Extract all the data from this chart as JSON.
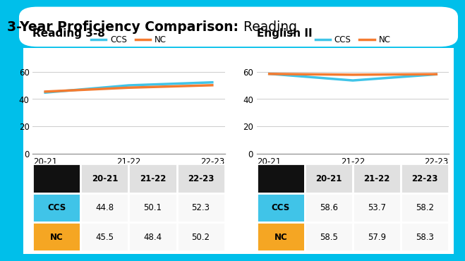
{
  "title_bold": "3-Year Proficiency Comparison:",
  "title_light": " Reading",
  "bg_color": "#00BFEA",
  "chart1_title": "Reading 3-8",
  "chart2_title": "English II",
  "years": [
    "20-21",
    "21-22",
    "22-23"
  ],
  "ccs_color": "#40C4E8",
  "nc_color": "#F47B30",
  "reading_ccs": [
    44.8,
    50.1,
    52.3
  ],
  "reading_nc": [
    45.5,
    48.4,
    50.2
  ],
  "english_ccs": [
    58.6,
    53.7,
    58.2
  ],
  "english_nc": [
    58.5,
    57.9,
    58.3
  ],
  "ylim": [
    0,
    70
  ],
  "yticks": [
    0,
    20,
    40,
    60
  ],
  "table1_header": [
    "",
    "20-21",
    "21-22",
    "22-23"
  ],
  "table2_header": [
    "",
    "20-21",
    "21-22",
    "22-23"
  ],
  "table1_rows": [
    [
      "CCS",
      "44.8",
      "50.1",
      "52.3"
    ],
    [
      "NC",
      "45.5",
      "48.4",
      "50.2"
    ]
  ],
  "table2_rows": [
    [
      "CCS",
      "58.6",
      "53.7",
      "58.2"
    ],
    [
      "NC",
      "58.5",
      "57.9",
      "58.3"
    ]
  ],
  "ccs_row_color": "#40C4E8",
  "nc_row_color": "#F5A623",
  "header_row_color": "#111111",
  "header_cell_color": "#E0E0E0",
  "line_width": 2.5
}
